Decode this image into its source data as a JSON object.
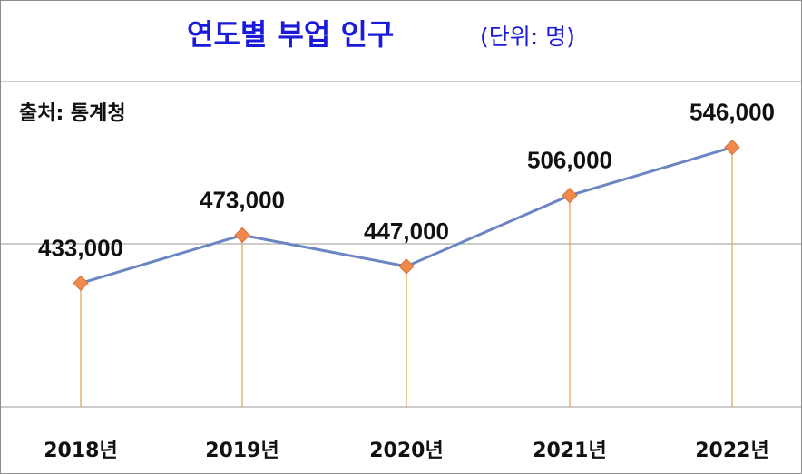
{
  "title": "연도별 부업 인구",
  "unit_note": "(단위: 명)",
  "source": "출처: 통계청",
  "colors": {
    "title": "#1a1adb",
    "line": "#6b86c2",
    "marker": "#f08a4b",
    "drop_line": "#e0a050",
    "grid": "#9a9a9a"
  },
  "chart_data": {
    "type": "line",
    "title": "연도별 부업 인구",
    "subtitle": "(단위: 명)",
    "categories": [
      "2018년",
      "2019년",
      "2020년",
      "2021년",
      "2022년"
    ],
    "values": [
      433000,
      473000,
      447000,
      506000,
      546000
    ],
    "value_labels": [
      "433,000",
      "473,000",
      "447,000",
      "506,000",
      "546,000"
    ],
    "ylim": [
      330000,
      600000
    ],
    "grid": true,
    "legend": false,
    "xlabel": "",
    "ylabel": ""
  }
}
